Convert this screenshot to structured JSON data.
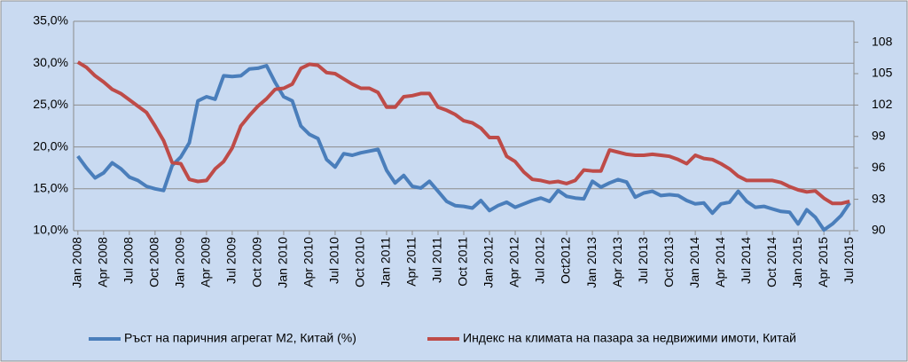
{
  "chart_data": {
    "type": "line",
    "categories": [
      "Jan 2008",
      null,
      null,
      "Apr 2008",
      null,
      null,
      "Jul 2008",
      null,
      null,
      "Oct 2008",
      null,
      null,
      "Jan 2009",
      null,
      null,
      "Apr 2009",
      null,
      null,
      "Jul 2009",
      null,
      null,
      "Oct 2009",
      null,
      null,
      "Jan 2010",
      null,
      null,
      "Apr 2010",
      null,
      null,
      "Jul 2010",
      null,
      null,
      "Oct 2010",
      null,
      null,
      "Jan 2011",
      null,
      null,
      "Apr 2011",
      null,
      null,
      "Jul 2011",
      null,
      null,
      "Oct 2011",
      null,
      null,
      "Jan 2012",
      null,
      null,
      "Apr 2012",
      null,
      null,
      "Jul 2012",
      null,
      null,
      "Oct2012",
      null,
      null,
      "Jan 2013",
      null,
      null,
      "Apr 2013",
      null,
      null,
      "Jul 2013",
      null,
      null,
      "Oct 2013",
      null,
      null,
      "Jan 2014",
      null,
      null,
      "Apr 2014",
      null,
      null,
      "Jul 2014",
      null,
      null,
      "Oct 2014",
      null,
      null,
      "Jan 2015",
      null,
      null,
      "Apr 2015",
      null,
      null,
      "Jul 2015"
    ],
    "series": [
      {
        "name": "Ръст на паричния агрегат М2, Китай (%)",
        "color": "#4a7ebb",
        "values": [
          18.9,
          17.5,
          16.3,
          16.9,
          18.1,
          17.4,
          16.4,
          16.0,
          15.3,
          15.0,
          14.8,
          17.8,
          18.8,
          20.5,
          25.5,
          26.0,
          25.7,
          28.5,
          28.4,
          28.5,
          29.3,
          29.4,
          29.7,
          27.7,
          26.0,
          25.5,
          22.5,
          21.5,
          21.0,
          18.5,
          17.6,
          19.2,
          19.0,
          19.3,
          19.5,
          19.7,
          17.2,
          15.7,
          16.6,
          15.3,
          15.1,
          15.9,
          14.7,
          13.5,
          13.0,
          12.9,
          12.7,
          13.6,
          12.4,
          13.0,
          13.4,
          12.8,
          13.2,
          13.6,
          13.9,
          13.5,
          14.8,
          14.1,
          13.9,
          13.8,
          15.9,
          15.2,
          15.7,
          16.1,
          15.8,
          14.0,
          14.5,
          14.7,
          14.2,
          14.3,
          14.2,
          13.6,
          13.2,
          13.3,
          12.1,
          13.2,
          13.4,
          14.7,
          13.5,
          12.8,
          12.9,
          12.6,
          12.3,
          12.2,
          10.8,
          12.5,
          11.6,
          10.1,
          10.8,
          11.8,
          13.3
        ]
      },
      {
        "name": "Индекс на климата на пазара за недвижими имоти, Китай",
        "color": "#be4b48",
        "axis": "y2",
        "values": [
          106.1,
          105.6,
          104.8,
          104.2,
          103.5,
          103.1,
          102.5,
          101.9,
          101.3,
          100.0,
          98.6,
          96.5,
          96.4,
          94.9,
          94.7,
          94.8,
          95.9,
          96.6,
          97.9,
          100.0,
          101.0,
          101.9,
          102.6,
          103.5,
          103.6,
          104.0,
          105.5,
          105.9,
          105.8,
          105.1,
          105.0,
          104.5,
          104.0,
          103.6,
          103.6,
          103.2,
          101.8,
          101.8,
          102.8,
          102.9,
          103.1,
          103.1,
          101.8,
          101.5,
          101.1,
          100.5,
          100.3,
          99.8,
          98.9,
          98.9,
          97.1,
          96.6,
          95.6,
          94.9,
          94.8,
          94.6,
          94.7,
          94.5,
          94.8,
          95.8,
          95.7,
          95.7,
          97.7,
          97.5,
          97.3,
          97.2,
          97.2,
          97.3,
          97.2,
          97.1,
          96.8,
          96.4,
          97.2,
          96.9,
          96.8,
          96.4,
          95.9,
          95.2,
          94.8,
          94.8,
          94.8,
          94.8,
          94.6,
          94.2,
          93.9,
          93.7,
          93.8,
          93.1,
          92.6,
          92.6,
          92.8
        ]
      }
    ],
    "ylim": [
      10,
      35
    ],
    "yticks": [
      {
        "value": 10,
        "label": "10,0%"
      },
      {
        "value": 15,
        "label": "15,0%"
      },
      {
        "value": 20,
        "label": "20,0%"
      },
      {
        "value": 25,
        "label": "25,0%"
      },
      {
        "value": 30,
        "label": "30,0%"
      },
      {
        "value": 35,
        "label": "35,0%"
      }
    ],
    "y2lim": [
      90,
      110
    ],
    "y2ticks": [
      90,
      93,
      96,
      99,
      102,
      105,
      108
    ],
    "grid": true,
    "legend": "bottom"
  }
}
